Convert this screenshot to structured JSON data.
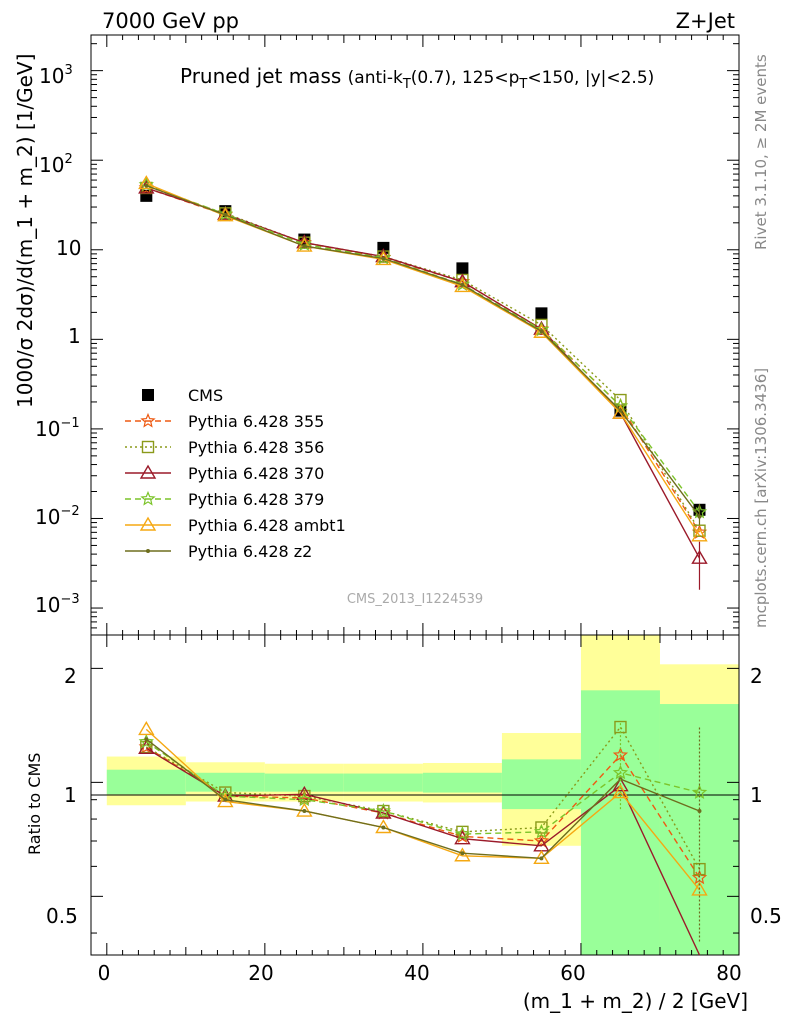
{
  "header": {
    "energy": "7000 GeV pp",
    "process": "Z+Jet",
    "side_rivet": "Rivet 3.1.10, ≥ 2M events",
    "side_mcplots": "mcplots.cern.ch [arXiv:1306.3436]",
    "watermark": "CMS_2013_I1224539"
  },
  "chart_data": [
    {
      "type": "scatter",
      "panel": "main",
      "title": "Pruned jet mass",
      "subtitle": "(anti-k_T(0.7), 125<p_T<150, |y|<2.5)",
      "ylabel": "1000/σ 2dσ)/d(m_1 + m_2) [1/GeV]",
      "yscale": "log",
      "ylim": [
        0.0005,
        2500
      ],
      "xlim": [
        -2,
        80
      ],
      "x": [
        5,
        15,
        25,
        35,
        45,
        55,
        65,
        75
      ],
      "legend_position": "lower-left",
      "series": [
        {
          "name": "CMS",
          "color": "#000000",
          "marker": "filled-square",
          "line": "none",
          "values": [
            40,
            27,
            13,
            10.5,
            6.2,
            1.95,
            0.16,
            0.0125
          ]
        },
        {
          "name": "Pythia 6.428 355",
          "color": "#ee5a12",
          "marker": "star",
          "line": "dashed",
          "values": [
            49,
            24.5,
            12,
            8.2,
            4.4,
            1.3,
            0.18,
            0.007
          ]
        },
        {
          "name": "Pythia 6.428 356",
          "color": "#8a9a1a",
          "marker": "open-square",
          "line": "dotted",
          "values": [
            49,
            25.5,
            12,
            8.4,
            4.6,
            1.45,
            0.21,
            0.0073
          ]
        },
        {
          "name": "Pythia 6.428 370",
          "color": "#9b1a2a",
          "marker": "open-triangle",
          "line": "solid",
          "values": [
            49,
            25,
            12,
            8.4,
            4.4,
            1.3,
            0.15,
            0.0036
          ]
        },
        {
          "name": "Pythia 6.428 379",
          "color": "#7cc42a",
          "marker": "star",
          "line": "dashed",
          "values": [
            53,
            25,
            11.5,
            8.1,
            4.1,
            1.28,
            0.18,
            0.0118
          ]
        },
        {
          "name": "Pythia 6.428 ambt1",
          "color": "#f5a812",
          "marker": "open-triangle",
          "line": "solid",
          "values": [
            55,
            24,
            11,
            7.8,
            3.9,
            1.2,
            0.15,
            0.0064
          ]
        },
        {
          "name": "Pythia 6.428 z2",
          "color": "#6e6e1e",
          "marker": "dot",
          "line": "solid",
          "values": [
            52,
            24.5,
            11,
            8.0,
            4.05,
            1.23,
            0.16,
            0.0105
          ]
        }
      ]
    },
    {
      "type": "line",
      "panel": "ratio",
      "ylabel": "Ratio to CMS",
      "xlabel": "(m_1 + m_2) / 2 [GeV]",
      "yscale": "log",
      "ylim": [
        0.35,
        2.45
      ],
      "xlim": [
        -2,
        80
      ],
      "x": [
        5,
        15,
        25,
        35,
        45,
        55,
        65,
        75
      ],
      "bin_edges": [
        0,
        10,
        20,
        30,
        40,
        50,
        60,
        70,
        80
      ],
      "band_inner": {
        "color": "#99ff99",
        "low": [
          0.93,
          0.945,
          0.945,
          0.945,
          0.94,
          0.85,
          0.35,
          0.35
        ],
        "high": [
          1.08,
          1.06,
          1.055,
          1.055,
          1.06,
          1.15,
          1.75,
          1.61
        ]
      },
      "band_outer": {
        "color": "#ffff99",
        "low": [
          0.87,
          0.89,
          0.89,
          0.89,
          0.885,
          0.68,
          0.35,
          0.43
        ],
        "high": [
          1.17,
          1.13,
          1.12,
          1.12,
          1.125,
          1.35,
          2.45,
          2.05
        ]
      },
      "series": [
        {
          "name": "Pythia 6.428 355",
          "values": [
            1.24,
            0.92,
            0.91,
            0.83,
            0.72,
            0.7,
            1.18,
            0.56
          ]
        },
        {
          "name": "Pythia 6.428 356",
          "values": [
            1.24,
            0.94,
            0.92,
            0.84,
            0.74,
            0.76,
            1.4,
            0.59
          ]
        },
        {
          "name": "Pythia 6.428 370",
          "values": [
            1.23,
            0.92,
            0.93,
            0.83,
            0.71,
            0.68,
            0.98,
            0.29
          ]
        },
        {
          "name": "Pythia 6.428 379",
          "values": [
            1.28,
            0.92,
            0.9,
            0.84,
            0.73,
            0.74,
            1.06,
            0.94
          ]
        },
        {
          "name": "Pythia 6.428 ambt1",
          "values": [
            1.38,
            0.89,
            0.84,
            0.76,
            0.64,
            0.63,
            0.94,
            0.52
          ]
        },
        {
          "name": "Pythia 6.428 z2",
          "values": [
            1.3,
            0.9,
            0.84,
            0.76,
            0.65,
            0.63,
            1.02,
            0.84
          ]
        }
      ]
    }
  ],
  "axes": {
    "main_y_ticks": [
      "10^-3",
      "10^-2",
      "10^-1",
      "1",
      "10",
      "10^2",
      "10^3"
    ],
    "ratio_y_ticks": [
      "0.5",
      "1",
      "2"
    ],
    "x_ticks": [
      "0",
      "20",
      "40",
      "60",
      "80"
    ]
  }
}
